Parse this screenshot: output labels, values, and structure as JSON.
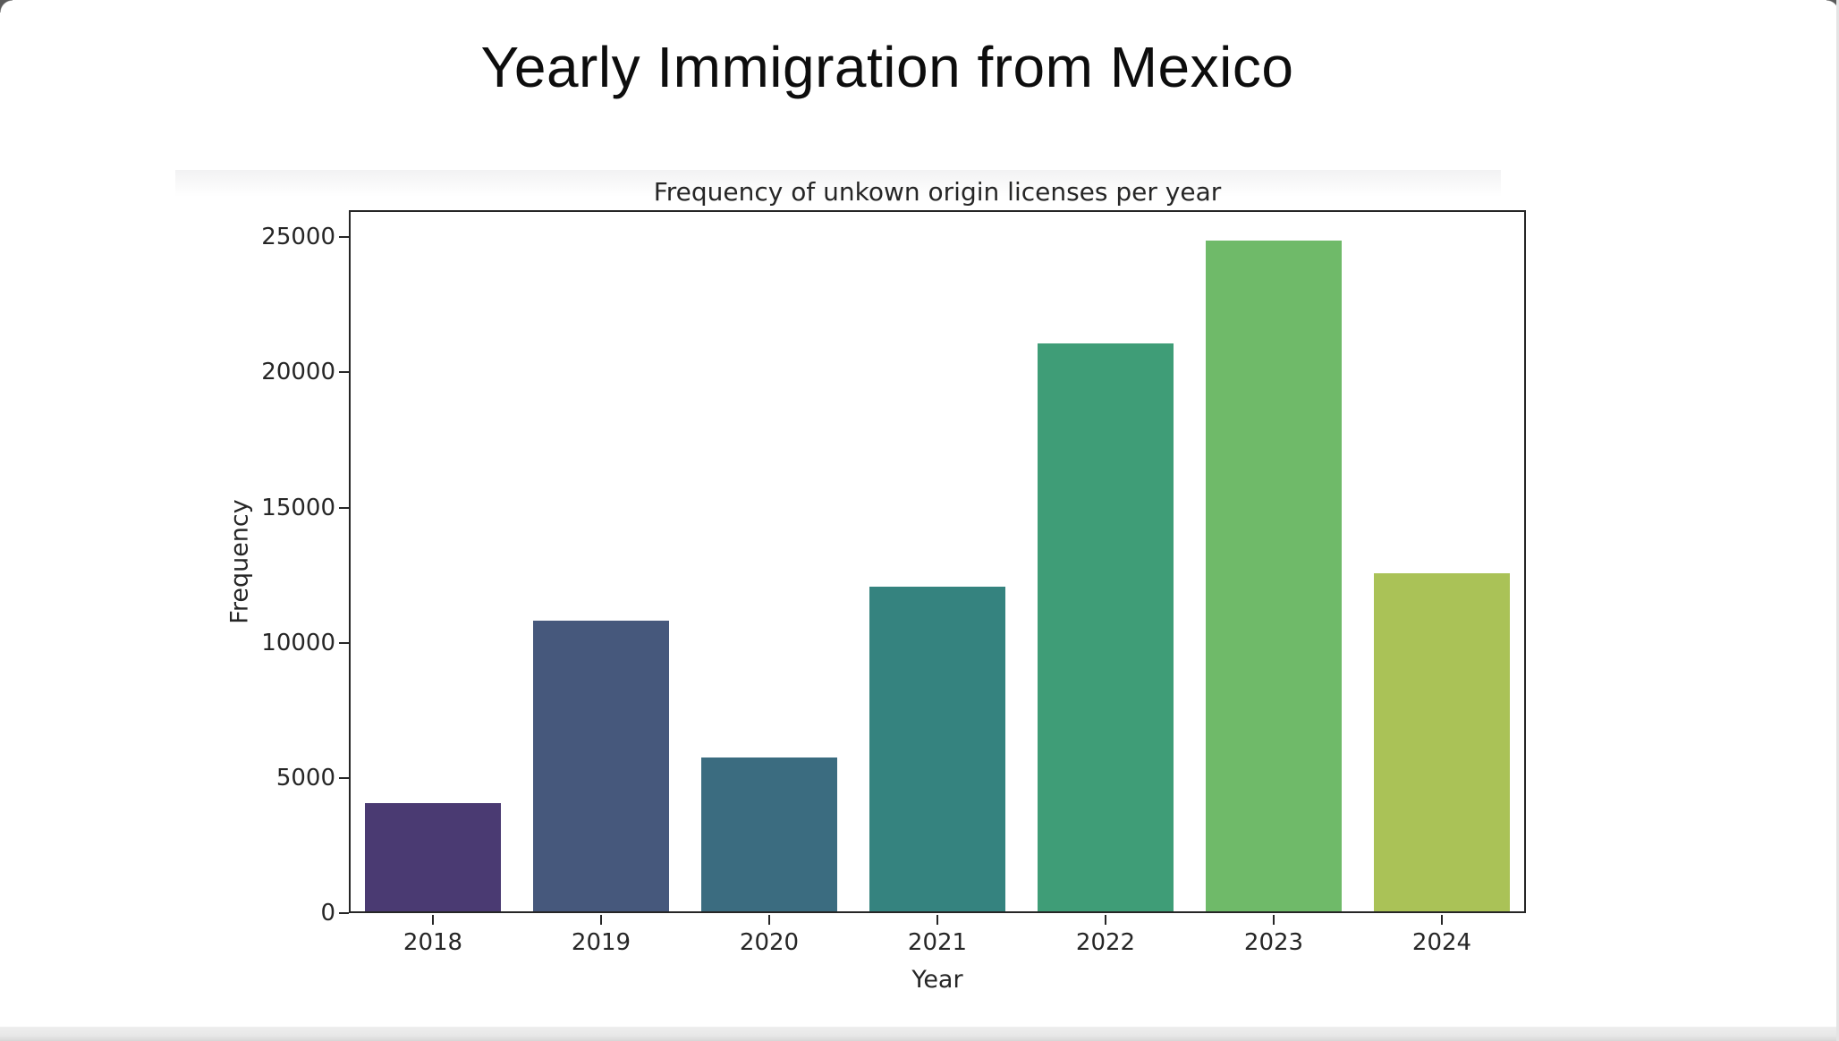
{
  "page": {
    "title": "Yearly Immigration from Mexico"
  },
  "chart_data": {
    "type": "bar",
    "title": "Frequency of unkown origin licenses per year",
    "xlabel": "Year",
    "ylabel": "Frequency",
    "categories": [
      "2018",
      "2019",
      "2020",
      "2021",
      "2022",
      "2023",
      "2024"
    ],
    "values": [
      4000,
      10750,
      5700,
      12000,
      21000,
      24800,
      12500
    ],
    "bar_colors": [
      "#4a3a72",
      "#46587c",
      "#3b6c80",
      "#35837f",
      "#3f9d77",
      "#6fba69",
      "#aac257"
    ],
    "y_ticks": [
      0,
      5000,
      10000,
      15000,
      20000,
      25000
    ],
    "ylim": [
      0,
      26000
    ],
    "grid": false,
    "legend_position": "none",
    "axis_color": "#262626"
  }
}
